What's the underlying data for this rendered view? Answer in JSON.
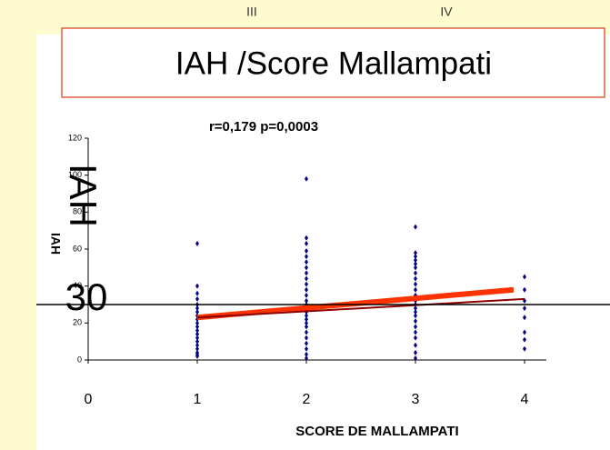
{
  "slide": {
    "top_labels": [
      "III",
      "IV"
    ],
    "title": "IAH /Score Mallampati"
  },
  "chart_data": {
    "type": "scatter",
    "subtitle": "r=0,179 p=0,0003",
    "x_label": "SCORE DE MALLAMPATI",
    "y_label": "IAH",
    "annotation": "IAH",
    "reference_line": {
      "value": 30,
      "label": "30"
    },
    "xlim": [
      0,
      4.2
    ],
    "xticks": [
      0,
      1,
      2,
      3,
      4
    ],
    "ylim": [
      0,
      120
    ],
    "yticks": [
      0,
      20,
      40,
      60,
      80,
      100,
      120
    ],
    "series": [
      {
        "color": "#000080",
        "x": [
          1,
          1,
          1,
          1,
          1,
          1,
          1,
          1,
          1,
          1,
          1,
          1,
          1,
          1,
          1,
          1,
          1,
          1,
          1,
          1,
          2,
          2,
          2,
          2,
          2,
          2,
          2,
          2,
          2,
          2,
          2,
          2,
          2,
          2,
          2,
          2,
          2,
          2,
          2,
          2,
          2,
          2,
          2,
          2,
          2,
          2,
          3,
          3,
          3,
          3,
          3,
          3,
          3,
          3,
          3,
          3,
          3,
          3,
          3,
          3,
          3,
          3,
          3,
          3,
          3,
          3,
          3,
          3,
          3,
          4,
          4,
          4,
          4,
          4,
          4,
          4,
          4
        ],
        "y": [
          63,
          40,
          36,
          33,
          30,
          28,
          26,
          24,
          22,
          20,
          18,
          16,
          14,
          12,
          10,
          8,
          6,
          4,
          3,
          2,
          98,
          66,
          63,
          59,
          56,
          53,
          50,
          47,
          44,
          41,
          38,
          35,
          32,
          30,
          28,
          26,
          24,
          22,
          20,
          18,
          15,
          12,
          9,
          6,
          3,
          1,
          72,
          58,
          56,
          54,
          52,
          50,
          47,
          44,
          41,
          38,
          35,
          32,
          30,
          28,
          26,
          24,
          21,
          18,
          15,
          12,
          8,
          4,
          1,
          45,
          38,
          32,
          28,
          23,
          15,
          11,
          6
        ]
      }
    ],
    "lines": [
      {
        "color": "#ff3300",
        "x": [
          1,
          3.9
        ],
        "y": [
          23,
          38
        ]
      },
      {
        "color": "#8b0000",
        "x": [
          1,
          4
        ],
        "y": [
          23,
          33
        ]
      }
    ]
  }
}
